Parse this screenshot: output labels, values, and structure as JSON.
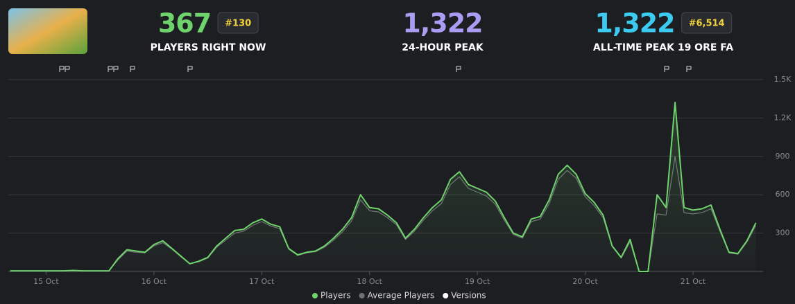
{
  "stats": [
    {
      "value": "367",
      "rank": "#130",
      "label": "PLAYERS RIGHT NOW",
      "color": "#6fd36c"
    },
    {
      "value": "1,322",
      "label": "24-HOUR PEAK",
      "color": "#a99cf2"
    },
    {
      "value": "1,322",
      "rank": "#6,514",
      "label": "ALL-TIME PEAK 19 ORE FA",
      "color": "#3ccaf0"
    }
  ],
  "chart_data": {
    "type": "line",
    "categories": [
      null,
      null,
      null,
      null,
      "15 Oct",
      null,
      null,
      null,
      null,
      null,
      null,
      null,
      null,
      null,
      null,
      null,
      "16 Oct",
      null,
      null,
      null,
      null,
      null,
      null,
      null,
      null,
      null,
      null,
      null,
      "17 Oct",
      null,
      null,
      null,
      null,
      null,
      null,
      null,
      null,
      null,
      null,
      null,
      "18 Oct",
      null,
      null,
      null,
      null,
      null,
      null,
      null,
      null,
      null,
      null,
      null,
      "19 Oct",
      null,
      null,
      null,
      null,
      null,
      null,
      null,
      null,
      null,
      null,
      null,
      "20 Oct",
      null,
      null,
      null,
      null,
      null,
      null,
      null,
      null,
      null,
      null,
      null,
      "21 Oct",
      null,
      null,
      null,
      null,
      null,
      null,
      null
    ],
    "series": [
      {
        "name": "Players",
        "color": "#6fd36c",
        "values": [
          5,
          5,
          5,
          5,
          5,
          5,
          5,
          8,
          5,
          5,
          5,
          5,
          100,
          170,
          160,
          150,
          210,
          240,
          180,
          120,
          60,
          80,
          110,
          200,
          260,
          320,
          330,
          380,
          410,
          370,
          350,
          180,
          130,
          150,
          160,
          200,
          260,
          330,
          420,
          600,
          500,
          490,
          440,
          380,
          260,
          330,
          420,
          500,
          560,
          720,
          780,
          680,
          650,
          620,
          550,
          420,
          300,
          270,
          410,
          430,
          560,
          760,
          830,
          760,
          610,
          540,
          440,
          200,
          110,
          250,
          0,
          0,
          600,
          500,
          1322,
          500,
          480,
          490,
          520,
          330,
          150,
          140,
          240,
          380
        ]
      },
      {
        "name": "Average Players",
        "color": "#707276",
        "values": [
          5,
          5,
          5,
          5,
          5,
          5,
          5,
          5,
          5,
          5,
          5,
          5,
          90,
          160,
          150,
          145,
          200,
          225,
          175,
          115,
          60,
          75,
          105,
          190,
          245,
          300,
          315,
          360,
          390,
          355,
          335,
          175,
          125,
          145,
          155,
          190,
          245,
          310,
          395,
          560,
          475,
          465,
          420,
          365,
          250,
          315,
          400,
          475,
          530,
          680,
          740,
          650,
          620,
          590,
          525,
          400,
          290,
          260,
          390,
          410,
          530,
          720,
          790,
          730,
          585,
          515,
          420,
          195,
          105,
          230,
          0,
          0,
          450,
          440,
          900,
          460,
          450,
          460,
          490,
          315,
          145,
          135,
          230,
          360
        ]
      }
    ],
    "legend_extra": {
      "name": "Versions",
      "color": "#ffffff"
    },
    "ylim": [
      0,
      1500
    ],
    "yticks": [
      {
        "value": 1500,
        "label": "1.5K"
      },
      {
        "value": 1200,
        "label": "1.2K"
      },
      900,
      600,
      300
    ],
    "grid": true
  }
}
